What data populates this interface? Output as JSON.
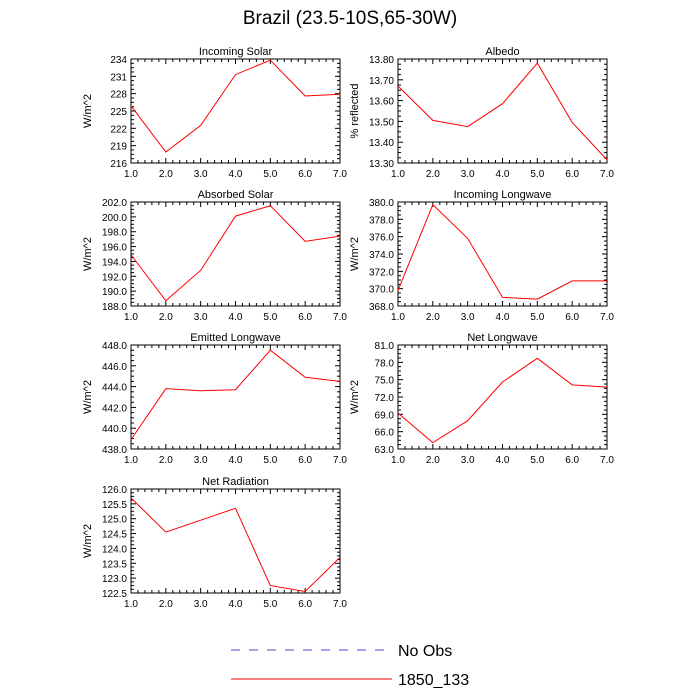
{
  "title": "Brazil (23.5-10S,65-30W)",
  "colors": {
    "model_line": "#ff0000",
    "obs_line": "#4444cc",
    "axis": "#000000"
  },
  "legend": [
    {
      "label": "No Obs",
      "style": "dashed",
      "color": "#4444cc"
    },
    {
      "label": "1850_133",
      "style": "solid",
      "color": "#ff0000"
    }
  ],
  "chart_data": [
    {
      "type": "line",
      "title": "Incoming Solar",
      "ylabel": "W/m^2",
      "x": [
        1,
        2,
        3,
        4,
        5,
        6,
        7
      ],
      "xlim": [
        1,
        7
      ],
      "xticks": [
        "1.0",
        "2.0",
        "3.0",
        "4.0",
        "5.0",
        "6.0",
        "7.0"
      ],
      "ylim": [
        216,
        234
      ],
      "yticks": [
        216,
        219,
        222,
        225,
        228,
        231,
        234
      ],
      "ytick_labels": [
        "216",
        "219",
        "222",
        "225",
        "228",
        "231",
        "234"
      ],
      "series": [
        {
          "name": "1850_133",
          "values": [
            225.9,
            217.9,
            222.5,
            231.3,
            233.8,
            227.6,
            227.9
          ]
        }
      ]
    },
    {
      "type": "line",
      "title": "Albedo",
      "ylabel": "% reflected",
      "x": [
        1,
        2,
        3,
        4,
        5,
        6,
        7
      ],
      "xlim": [
        1,
        7
      ],
      "xticks": [
        "1.0",
        "2.0",
        "3.0",
        "4.0",
        "5.0",
        "6.0",
        "7.0"
      ],
      "ylim": [
        13.3,
        13.8
      ],
      "yticks": [
        13.3,
        13.4,
        13.5,
        13.6,
        13.7,
        13.8
      ],
      "ytick_labels": [
        "13.30",
        "13.40",
        "13.50",
        "13.60",
        "13.70",
        "13.80"
      ],
      "series": [
        {
          "name": "1850_133",
          "values": [
            13.67,
            13.505,
            13.475,
            13.585,
            13.78,
            13.495,
            13.315
          ]
        }
      ]
    },
    {
      "type": "line",
      "title": "Absorbed Solar",
      "ylabel": "W/m^2",
      "x": [
        1,
        2,
        3,
        4,
        5,
        6,
        7
      ],
      "xlim": [
        1,
        7
      ],
      "xticks": [
        "1.0",
        "2.0",
        "3.0",
        "4.0",
        "5.0",
        "6.0",
        "7.0"
      ],
      "ylim": [
        188,
        202
      ],
      "yticks": [
        188,
        190,
        192,
        194,
        196,
        198,
        200,
        202
      ],
      "ytick_labels": [
        "188.0",
        "190.0",
        "192.0",
        "194.0",
        "196.0",
        "198.0",
        "200.0",
        "202.0"
      ],
      "series": [
        {
          "name": "1850_133",
          "values": [
            194.9,
            188.7,
            192.8,
            200.1,
            201.5,
            196.7,
            197.4
          ]
        }
      ]
    },
    {
      "type": "line",
      "title": "Incoming Longwave",
      "ylabel": "W/m^2",
      "x": [
        1,
        2,
        3,
        4,
        5,
        6,
        7
      ],
      "xlim": [
        1,
        7
      ],
      "xticks": [
        "1.0",
        "2.0",
        "3.0",
        "4.0",
        "5.0",
        "6.0",
        "7.0"
      ],
      "ylim": [
        368,
        380
      ],
      "yticks": [
        368,
        370,
        372,
        374,
        376,
        378,
        380
      ],
      "ytick_labels": [
        "368.0",
        "370.0",
        "372.0",
        "374.0",
        "376.0",
        "378.0",
        "380.0"
      ],
      "series": [
        {
          "name": "1850_133",
          "values": [
            369.8,
            379.7,
            375.8,
            369.0,
            368.8,
            370.9,
            370.9
          ]
        }
      ]
    },
    {
      "type": "line",
      "title": "Emitted Longwave",
      "ylabel": "W/m^2",
      "x": [
        1,
        2,
        3,
        4,
        5,
        6,
        7
      ],
      "xlim": [
        1,
        7
      ],
      "xticks": [
        "1.0",
        "2.0",
        "3.0",
        "4.0",
        "5.0",
        "6.0",
        "7.0"
      ],
      "ylim": [
        438,
        448
      ],
      "yticks": [
        438,
        440,
        442,
        444,
        446,
        448
      ],
      "ytick_labels": [
        "438.0",
        "440.0",
        "442.0",
        "444.0",
        "446.0",
        "448.0"
      ],
      "series": [
        {
          "name": "1850_133",
          "values": [
            438.9,
            443.8,
            443.6,
            443.7,
            447.5,
            444.9,
            444.5
          ]
        }
      ]
    },
    {
      "type": "line",
      "title": "Net Longwave",
      "ylabel": "W/m^2",
      "x": [
        1,
        2,
        3,
        4,
        5,
        6,
        7
      ],
      "xlim": [
        1,
        7
      ],
      "xticks": [
        "1.0",
        "2.0",
        "3.0",
        "4.0",
        "5.0",
        "6.0",
        "7.0"
      ],
      "ylim": [
        63,
        81
      ],
      "yticks": [
        63,
        66,
        69,
        72,
        75,
        78,
        81
      ],
      "ytick_labels": [
        "63.0",
        "66.0",
        "69.0",
        "72.0",
        "75.0",
        "78.0",
        "81.0"
      ],
      "series": [
        {
          "name": "1850_133",
          "values": [
            69.2,
            64.1,
            67.9,
            74.6,
            78.7,
            74.1,
            73.7
          ]
        }
      ]
    },
    {
      "type": "line",
      "title": "Net Radiation",
      "ylabel": "W/m^2",
      "x": [
        1,
        2,
        3,
        4,
        5,
        6,
        7
      ],
      "xlim": [
        1,
        7
      ],
      "xticks": [
        "1.0",
        "2.0",
        "3.0",
        "4.0",
        "5.0",
        "6.0",
        "7.0"
      ],
      "ylim": [
        122.5,
        126
      ],
      "yticks": [
        122.5,
        123,
        123.5,
        124,
        124.5,
        125,
        125.5,
        126
      ],
      "ytick_labels": [
        "122.5",
        "123.0",
        "123.5",
        "124.0",
        "124.5",
        "125.0",
        "125.5",
        "126.0"
      ],
      "series": [
        {
          "name": "1850_133",
          "values": [
            125.7,
            124.55,
            124.95,
            125.35,
            122.75,
            122.55,
            123.7
          ]
        }
      ]
    }
  ]
}
